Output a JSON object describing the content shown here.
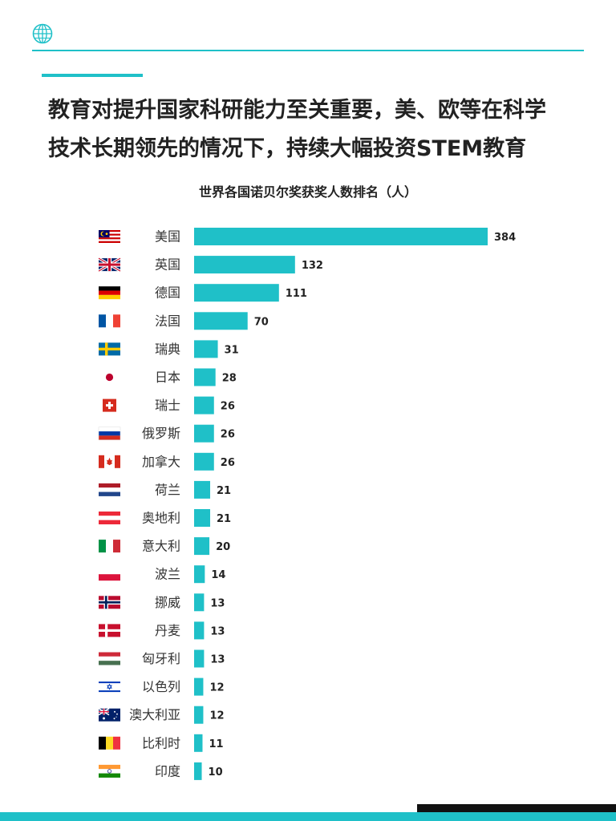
{
  "header": {
    "logo_icon": "globe-icon",
    "headline_line1": "教育对提升国家科研能力至关重要，美、欧等在科学",
    "headline_line2": "技术长期领先的情况下，持续大幅投资STEM教育"
  },
  "colors": {
    "accent": "#1fc0c8",
    "bar": "#1fc0c8",
    "text": "#222222",
    "footer_dark": "#111111"
  },
  "chart_data": {
    "type": "bar",
    "orientation": "horizontal",
    "title": "世界各国诺贝尔奖获奖人数排名（人）",
    "xlabel": "",
    "ylabel": "",
    "grid": false,
    "legend": "none",
    "xlim": [
      0,
      400
    ],
    "categories": [
      "美国",
      "英国",
      "德国",
      "法国",
      "瑞典",
      "日本",
      "瑞士",
      "俄罗斯",
      "加拿大",
      "荷兰",
      "奥地利",
      "意大利",
      "波兰",
      "挪威",
      "丹麦",
      "匈牙利",
      "以色列",
      "澳大利亚",
      "比利时",
      "印度"
    ],
    "flags": [
      "malaysia-flag-icon",
      "uk-flag-icon",
      "germany-flag-icon",
      "france-flag-icon",
      "sweden-flag-icon",
      "japan-flag-icon",
      "switzerland-flag-icon",
      "russia-flag-icon",
      "canada-flag-icon",
      "netherlands-flag-icon",
      "austria-flag-icon",
      "italy-flag-icon",
      "poland-flag-icon",
      "norway-flag-icon",
      "denmark-flag-icon",
      "hungary-flag-icon",
      "israel-flag-icon",
      "australia-flag-icon",
      "belgium-flag-icon",
      "india-flag-icon"
    ],
    "values": [
      384,
      132,
      111,
      70,
      31,
      28,
      26,
      26,
      26,
      21,
      21,
      20,
      14,
      13,
      13,
      13,
      12,
      12,
      11,
      10
    ]
  }
}
